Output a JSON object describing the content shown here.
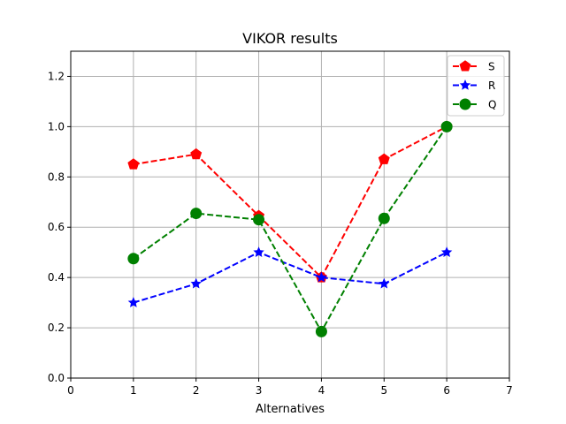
{
  "chart_data": {
    "type": "line",
    "title": "VIKOR results",
    "xlabel": "Alternatives",
    "ylabel": "",
    "x": [
      1,
      2,
      3,
      4,
      5,
      6
    ],
    "xlim": [
      0,
      7
    ],
    "ylim": [
      0,
      1.3
    ],
    "xticks": [
      "0",
      "1",
      "2",
      "3",
      "4",
      "5",
      "6",
      "7"
    ],
    "yticks": [
      "0.0",
      "0.2",
      "0.4",
      "0.6",
      "0.8",
      "1.0",
      "1.2"
    ],
    "grid": true,
    "legend_position": "top-right",
    "series": [
      {
        "name": "S",
        "color": "#ff0000",
        "marker": "pentagon",
        "linestyle": "dashed",
        "values": [
          0.85,
          0.89,
          0.645,
          0.4,
          0.87,
          1.0
        ]
      },
      {
        "name": "R",
        "color": "#0000ff",
        "marker": "star",
        "linestyle": "dashed",
        "values": [
          0.3,
          0.375,
          0.5,
          0.4,
          0.375,
          0.5
        ]
      },
      {
        "name": "Q",
        "color": "#008000",
        "marker": "circle",
        "linestyle": "dashed",
        "values": [
          0.475,
          0.655,
          0.63,
          0.185,
          0.635,
          1.0
        ]
      }
    ]
  }
}
